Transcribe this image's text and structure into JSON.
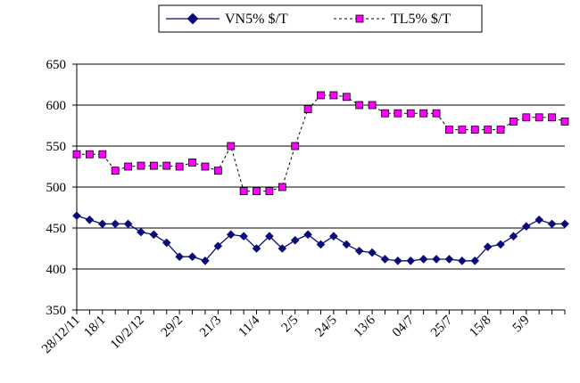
{
  "chart_data": {
    "type": "line",
    "title": "",
    "xlabel": "",
    "ylabel": "",
    "ylim": [
      350,
      650
    ],
    "yticks": [
      350,
      400,
      450,
      500,
      550,
      600,
      650
    ],
    "grid": "horizontal",
    "legend_position": "top-center",
    "x_tick_labels": [
      {
        "index": 0,
        "label": "28/12/11"
      },
      {
        "index": 2,
        "label": "18/1"
      },
      {
        "index": 5,
        "label": "10/2/12"
      },
      {
        "index": 8,
        "label": "29/2"
      },
      {
        "index": 11,
        "label": "21/3"
      },
      {
        "index": 14,
        "label": "11/4"
      },
      {
        "index": 17,
        "label": "2/5"
      },
      {
        "index": 20,
        "label": "24/5"
      },
      {
        "index": 23,
        "label": "13/6"
      },
      {
        "index": 26,
        "label": "04/7"
      },
      {
        "index": 29,
        "label": "25/7"
      },
      {
        "index": 32,
        "label": "15/8"
      },
      {
        "index": 35,
        "label": "5/9"
      }
    ],
    "series": [
      {
        "name": "VN5% $/T",
        "color": "#0a0a7a",
        "line_style": "solid",
        "marker": "diamond",
        "values": [
          465,
          460,
          455,
          455,
          455,
          445,
          442,
          432,
          415,
          415,
          410,
          428,
          442,
          440,
          425,
          440,
          425,
          435,
          442,
          430,
          440,
          430,
          422,
          420,
          412,
          410,
          410,
          412,
          412,
          412,
          410,
          410,
          427,
          430,
          440,
          452,
          460,
          455,
          455
        ]
      },
      {
        "name": "TL5% $/T",
        "color": "#000000",
        "marker_fill": "#ff00ff",
        "line_style": "dashed",
        "marker": "square",
        "values": [
          540,
          540,
          540,
          520,
          525,
          526,
          526,
          526,
          525,
          530,
          525,
          520,
          550,
          495,
          495,
          495,
          500,
          550,
          595,
          612,
          612,
          610,
          600,
          600,
          590,
          590,
          590,
          590,
          590,
          570,
          570,
          570,
          570,
          570,
          580,
          585,
          585,
          585,
          580
        ]
      }
    ]
  }
}
